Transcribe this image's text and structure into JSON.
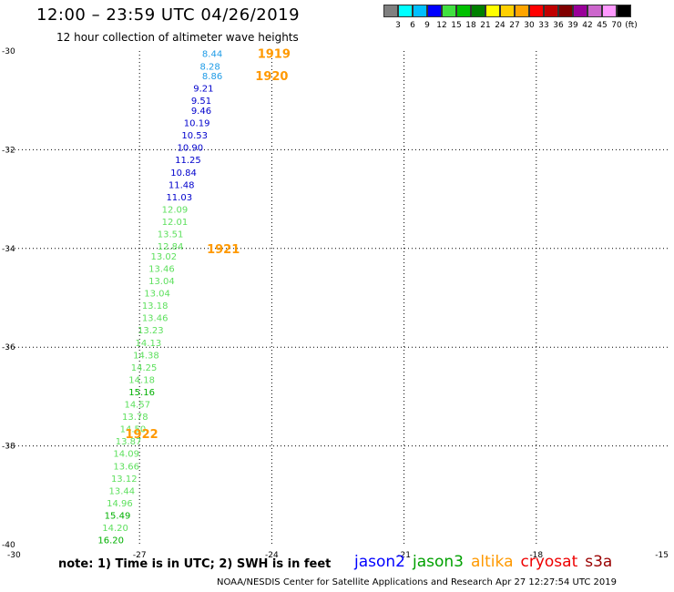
{
  "title": "12:00 – 23:59 UTC 04/26/2019",
  "subtitle": "12 hour collection of altimeter wave heights",
  "color_scale": {
    "colors": [
      "#808080",
      "#00ffff",
      "#00bfff",
      "#0000ff",
      "#40e040",
      "#00c000",
      "#008000",
      "#ffff00",
      "#ffd000",
      "#ffa500",
      "#ff0000",
      "#c00000",
      "#800000",
      "#990099",
      "#cc66cc",
      "#ff99ff",
      "#000000"
    ],
    "labels": [
      "3",
      "6",
      "9",
      "12",
      "15",
      "18",
      "21",
      "24",
      "27",
      "30",
      "33",
      "36",
      "39",
      "42",
      "45",
      "70",
      "(ft)"
    ]
  },
  "note": "note: 1) Time is in UTC; 2) SWH is in feet",
  "legend": [
    {
      "name": "jason2",
      "color": "#0000ff"
    },
    {
      "name": "jason3",
      "color": "#00a000"
    },
    {
      "name": "altika",
      "color": "#ff9900"
    },
    {
      "name": "cryosat",
      "color": "#ee0000"
    },
    {
      "name": "s3a",
      "color": "#990000"
    }
  ],
  "credit": "NOAA/NESDIS Center for Satellite Applications and Research    Apr 27 12:27:54 UTC 2019",
  "map": {
    "lon_range": [
      -30,
      -15
    ],
    "lat_range": [
      -40,
      -30
    ],
    "x_ticks": [
      "-30",
      "-27",
      "-24",
      "-21",
      "-18",
      "-15"
    ],
    "y_ticks": [
      "-30",
      "-32",
      "-34",
      "-36",
      "-38",
      "-40"
    ],
    "grid_lon": [
      -27,
      -24,
      -21,
      -18
    ],
    "grid_lat": [
      -32,
      -34,
      -36,
      -38
    ],
    "pass_labels": [
      {
        "label": "1919",
        "lon": -23.95,
        "lat": -30.05
      },
      {
        "label": "1920",
        "lon": -24.0,
        "lat": -30.5
      },
      {
        "label": "1921",
        "lon": -25.1,
        "lat": -34.0
      },
      {
        "label": "1922",
        "lon": -26.95,
        "lat": -37.75
      }
    ],
    "observations": [
      {
        "value": "8.44",
        "lon": -25.35,
        "lat": -30.05,
        "color": "#1e9be6"
      },
      {
        "value": "8.28",
        "lon": -25.4,
        "lat": -30.3,
        "color": "#1e9be6"
      },
      {
        "value": "8.86",
        "lon": -25.35,
        "lat": -30.5,
        "color": "#1e9be6"
      },
      {
        "value": "9.21",
        "lon": -25.55,
        "lat": -30.75,
        "color": "#0000cc"
      },
      {
        "value": "9.51",
        "lon": -25.6,
        "lat": -31.0,
        "color": "#0000cc"
      },
      {
        "value": "9.46",
        "lon": -25.6,
        "lat": -31.2,
        "color": "#0000cc"
      },
      {
        "value": "10.19",
        "lon": -25.7,
        "lat": -31.45,
        "color": "#0000cc"
      },
      {
        "value": "10.53",
        "lon": -25.75,
        "lat": -31.7,
        "color": "#0000cc"
      },
      {
        "value": "10.90",
        "lon": -25.85,
        "lat": -31.95,
        "color": "#0000cc"
      },
      {
        "value": "11.25",
        "lon": -25.9,
        "lat": -32.2,
        "color": "#0000cc"
      },
      {
        "value": "10.84",
        "lon": -26.0,
        "lat": -32.45,
        "color": "#0000cc"
      },
      {
        "value": "11.48",
        "lon": -26.05,
        "lat": -32.7,
        "color": "#0000cc"
      },
      {
        "value": "11.03",
        "lon": -26.1,
        "lat": -32.95,
        "color": "#0000cc"
      },
      {
        "value": "12.09",
        "lon": -26.2,
        "lat": -33.2,
        "color": "#5ee05e"
      },
      {
        "value": "12.01",
        "lon": -26.2,
        "lat": -33.45,
        "color": "#5ee05e"
      },
      {
        "value": "13.51",
        "lon": -26.3,
        "lat": -33.7,
        "color": "#5ee05e"
      },
      {
        "value": "12.84",
        "lon": -26.3,
        "lat": -33.95,
        "color": "#5ee05e"
      },
      {
        "value": "13.02",
        "lon": -26.45,
        "lat": -34.15,
        "color": "#5ee05e"
      },
      {
        "value": "13.46",
        "lon": -26.5,
        "lat": -34.4,
        "color": "#5ee05e"
      },
      {
        "value": "13.04",
        "lon": -26.5,
        "lat": -34.65,
        "color": "#5ee05e"
      },
      {
        "value": "13.04",
        "lon": -26.6,
        "lat": -34.9,
        "color": "#5ee05e"
      },
      {
        "value": "13.18",
        "lon": -26.65,
        "lat": -35.15,
        "color": "#5ee05e"
      },
      {
        "value": "13.46",
        "lon": -26.65,
        "lat": -35.4,
        "color": "#5ee05e"
      },
      {
        "value": "13.23",
        "lon": -26.75,
        "lat": -35.65,
        "color": "#5ee05e"
      },
      {
        "value": "14.13",
        "lon": -26.8,
        "lat": -35.9,
        "color": "#5ee05e"
      },
      {
        "value": "14.38",
        "lon": -26.85,
        "lat": -36.15,
        "color": "#5ee05e"
      },
      {
        "value": "14.25",
        "lon": -26.9,
        "lat": -36.4,
        "color": "#5ee05e"
      },
      {
        "value": "14.18",
        "lon": -26.95,
        "lat": -36.65,
        "color": "#5ee05e"
      },
      {
        "value": "15.16",
        "lon": -26.95,
        "lat": -36.9,
        "color": "#00b000"
      },
      {
        "value": "14.57",
        "lon": -27.05,
        "lat": -37.15,
        "color": "#5ee05e"
      },
      {
        "value": "13.78",
        "lon": -27.1,
        "lat": -37.4,
        "color": "#5ee05e"
      },
      {
        "value": "14.50",
        "lon": -27.15,
        "lat": -37.65,
        "color": "#5ee05e"
      },
      {
        "value": "13.87",
        "lon": -27.25,
        "lat": -37.9,
        "color": "#5ee05e"
      },
      {
        "value": "14.09",
        "lon": -27.3,
        "lat": -38.15,
        "color": "#5ee05e"
      },
      {
        "value": "13.66",
        "lon": -27.3,
        "lat": -38.4,
        "color": "#5ee05e"
      },
      {
        "value": "13.12",
        "lon": -27.35,
        "lat": -38.65,
        "color": "#5ee05e"
      },
      {
        "value": "13.44",
        "lon": -27.4,
        "lat": -38.9,
        "color": "#5ee05e"
      },
      {
        "value": "14.96",
        "lon": -27.45,
        "lat": -39.15,
        "color": "#5ee05e"
      },
      {
        "value": "15.49",
        "lon": -27.5,
        "lat": -39.4,
        "color": "#00b000"
      },
      {
        "value": "14.20",
        "lon": -27.55,
        "lat": -39.65,
        "color": "#5ee05e"
      },
      {
        "value": "16.20",
        "lon": -27.65,
        "lat": -39.9,
        "color": "#00b000"
      }
    ]
  }
}
